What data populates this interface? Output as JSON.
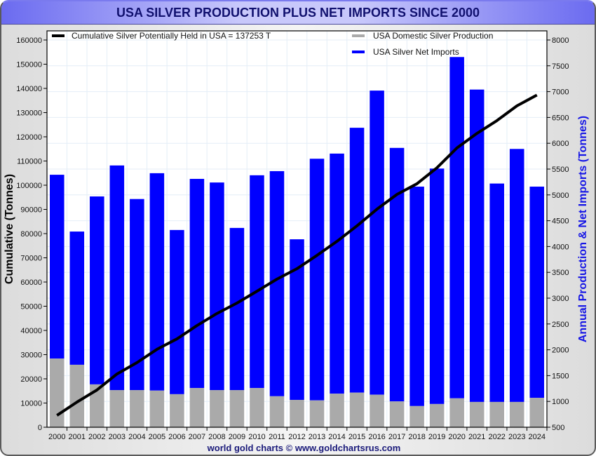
{
  "chart_data": {
    "type": "bar",
    "title": "USA SILVER PRODUCTION PLUS NET IMPORTS SINCE 2000",
    "footer": "world gold charts © www.goldchartsrus.com",
    "categories": [
      "2000",
      "2001",
      "2002",
      "2003",
      "2004",
      "2005",
      "2006",
      "2007",
      "2008",
      "2009",
      "2010",
      "2011",
      "2012",
      "2013",
      "2014",
      "2015",
      "2016",
      "2017",
      "2018",
      "2019",
      "2020",
      "2021",
      "2022",
      "2023",
      "2024"
    ],
    "y_left": {
      "label": "Cumulative (Tonnes)",
      "range": [
        0,
        160000
      ],
      "ticks": [
        0,
        10000,
        20000,
        30000,
        40000,
        50000,
        60000,
        70000,
        80000,
        90000,
        100000,
        110000,
        120000,
        130000,
        140000,
        150000,
        160000
      ]
    },
    "y_right": {
      "label": "Annual Production & Net Imports (Tonnes)",
      "range": [
        500,
        8000
      ],
      "ticks": [
        500,
        1000,
        1500,
        2000,
        2500,
        3000,
        3500,
        4000,
        4500,
        5000,
        5500,
        6000,
        6500,
        7000,
        7500,
        8000
      ]
    },
    "grid": true,
    "legend": [
      {
        "name": "Cumulative Silver Potentially Held in USA  = 137253 T",
        "color": "#000000",
        "position": "top-left"
      },
      {
        "name": "USA Domestic Silver Production",
        "color": "#aaaaaa",
        "position": "top-center"
      },
      {
        "name": "USA Silver Net Imports",
        "color": "#0000ff",
        "position": "top-center"
      }
    ],
    "series": [
      {
        "name": "USA Domestic Silver Production",
        "axis": "right",
        "stack": "annual",
        "color": "#aaaaaa",
        "values": [
          1830,
          1710,
          1330,
          1220,
          1220,
          1210,
          1140,
          1260,
          1220,
          1220,
          1260,
          1100,
          1030,
          1020,
          1150,
          1170,
          1130,
          1000,
          910,
          950,
          1060,
          990,
          990,
          990,
          1070
        ]
      },
      {
        "name": "USA Silver Net Imports",
        "axis": "right",
        "stack": "annual",
        "color": "#0000ff",
        "values": [
          3560,
          2580,
          3640,
          4350,
          3700,
          4210,
          3180,
          4050,
          4020,
          3140,
          4120,
          4360,
          3110,
          4680,
          4650,
          5130,
          5890,
          4910,
          4250,
          4560,
          6610,
          6050,
          4230,
          4900,
          4090
        ]
      },
      {
        "name": "Cumulative Silver Potentially Held in USA",
        "axis": "left",
        "type": "line",
        "color": "#000000",
        "values": [
          4900,
          10400,
          15400,
          22000,
          26700,
          32200,
          36500,
          42000,
          47000,
          51300,
          56200,
          61200,
          65500,
          71000,
          76800,
          83200,
          90100,
          96200,
          100600,
          107200,
          115400,
          121400,
          126700,
          132800,
          137253
        ]
      }
    ]
  }
}
